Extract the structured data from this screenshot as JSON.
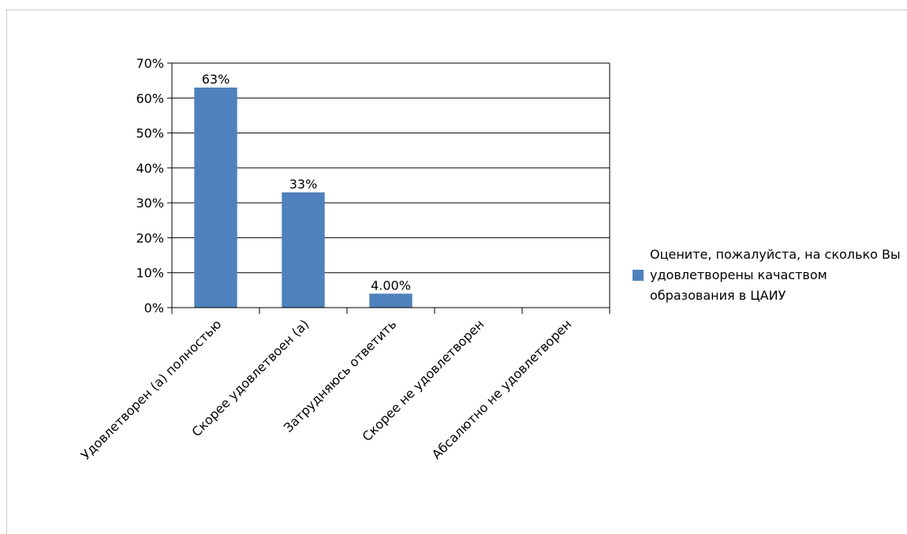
{
  "colors": {
    "bar": "#4f81bd",
    "gridline": "#000000",
    "axis": "#000000"
  },
  "chart_data": {
    "type": "bar",
    "categories": [
      "Удовлетворен (а) полностью",
      "Скорее удовлетвоен (а)",
      "Затрудняюсь ответить",
      "Скорее не  удовлетворен",
      "Абсалютно не удовлетворен"
    ],
    "series": [
      {
        "name": "Оцените, пожалуйста, на сколько Вы удовлетворены качаством образования в ЦАИУ",
        "values": [
          0.63,
          0.33,
          0.04,
          0,
          0
        ],
        "data_labels": [
          "63%",
          "33%",
          "4.00%",
          "",
          ""
        ]
      }
    ],
    "y_ticks": [
      "0%",
      "10%",
      "20%",
      "30%",
      "40%",
      "50%",
      "60%",
      "70%"
    ],
    "ylim": [
      0,
      0.7
    ],
    "grid": true,
    "legend_position": "right"
  }
}
